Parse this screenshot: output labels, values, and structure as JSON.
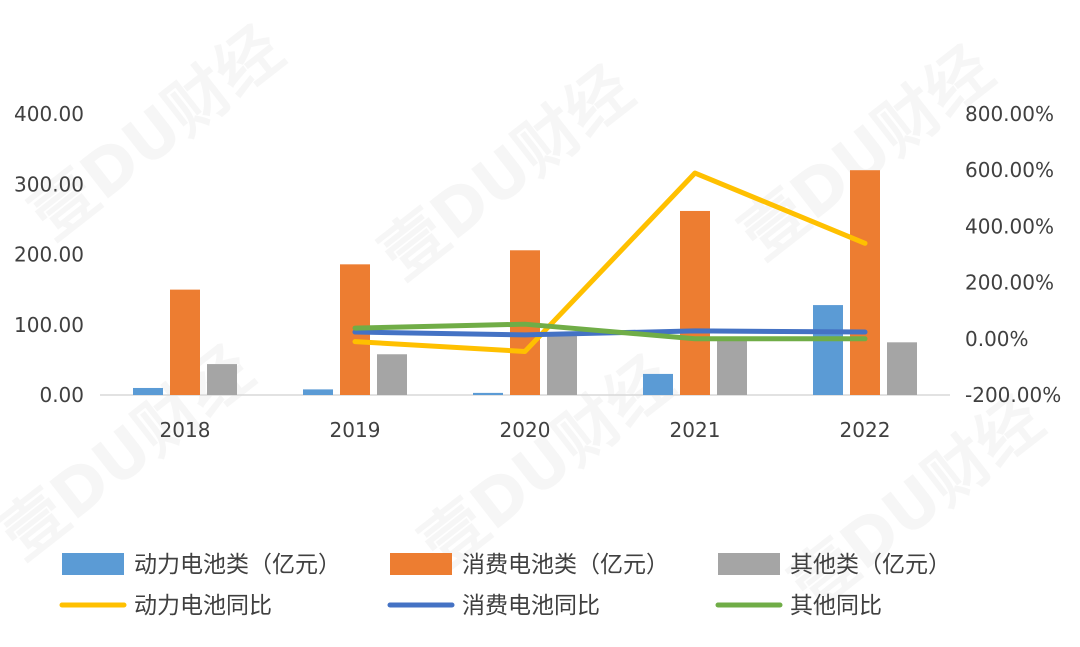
{
  "watermark_text": "壹DU财经",
  "chart_data": {
    "type": "bar",
    "categories": [
      "2018",
      "2019",
      "2020",
      "2021",
      "2022"
    ],
    "ylim": [
      0,
      400
    ],
    "y2lim": [
      -200,
      800
    ],
    "y_ticks": [
      "0.00",
      "100.00",
      "200.00",
      "300.00",
      "400.00"
    ],
    "y2_ticks": [
      "-200.00%",
      "0.00%",
      "200.00%",
      "400.00%",
      "600.00%",
      "800.00%"
    ],
    "grid": false,
    "legend_position": "bottom",
    "bar_series": [
      {
        "name": "动力电池类（亿元）",
        "color": "#5b9bd5",
        "values": [
          10,
          8,
          3,
          30,
          128
        ]
      },
      {
        "name": "消费电池类（亿元）",
        "color": "#ed7d31",
        "values": [
          150,
          186,
          206,
          262,
          320
        ]
      },
      {
        "name": "其他类（亿元）",
        "color": "#a5a5a5",
        "values": [
          44,
          58,
          88,
          79,
          75
        ]
      }
    ],
    "line_series": [
      {
        "name": "动力电池同比",
        "color": "#ffc000",
        "axis": "right",
        "values": [
          null,
          -10,
          -45,
          590,
          340
        ]
      },
      {
        "name": "消费电池同比",
        "color": "#4472c4",
        "axis": "right",
        "values": [
          null,
          24,
          14,
          28,
          24
        ]
      },
      {
        "name": "其他同比",
        "color": "#70ad47",
        "axis": "right",
        "values": [
          null,
          38,
          52,
          0,
          0
        ]
      }
    ]
  }
}
